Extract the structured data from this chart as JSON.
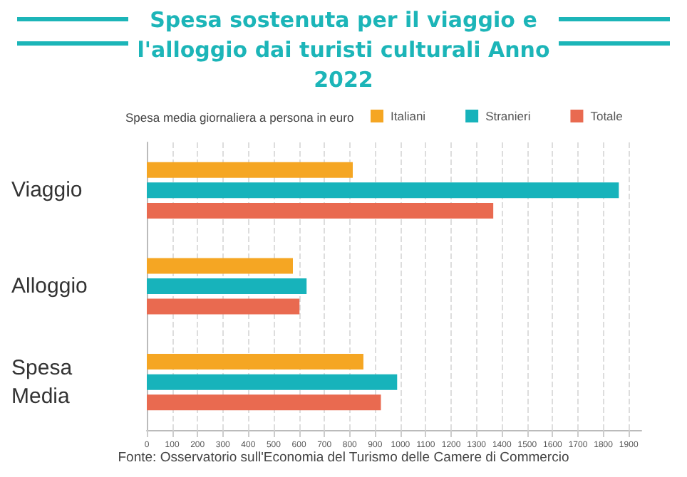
{
  "chart_data": {
    "type": "bar",
    "orientation": "horizontal",
    "title": "Spesa sostenuta per il viaggio e l'alloggio dai turisti culturali Anno 2022",
    "legend_title": "Spesa media giornaliera a persona in euro",
    "categories": [
      "Viaggio",
      "Alloggio",
      "Spesa Media"
    ],
    "series": [
      {
        "name": "Italiani",
        "color": "#f5a623",
        "values": [
          812,
          576,
          854
        ]
      },
      {
        "name": "Stranieri",
        "color": "#17b3bb",
        "values": [
          1861,
          630,
          987
        ]
      },
      {
        "name": "Totale",
        "color": "#e96a50",
        "values": [
          1366,
          602,
          923
        ]
      }
    ],
    "xlim": [
      0,
      1950
    ],
    "xticks": [
      0,
      100,
      200,
      300,
      400,
      500,
      600,
      700,
      800,
      900,
      1000,
      1100,
      1200,
      1300,
      1400,
      1500,
      1600,
      1700,
      1800,
      1900
    ],
    "grid": "x",
    "legend": "top",
    "annotations": [
      "Fonte: Osservatorio sull'Economia del Turismo delle Camere di Commercio"
    ]
  }
}
